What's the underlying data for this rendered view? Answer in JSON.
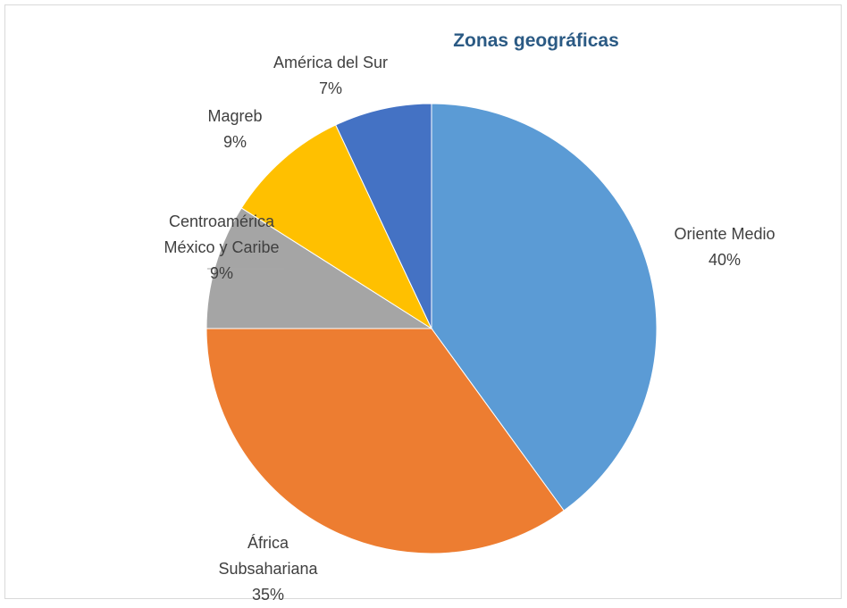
{
  "chart_data": {
    "type": "pie",
    "title": "Zonas geográficas",
    "categories": [
      "Oriente Medio",
      "África Subsahariana",
      "Centroamérica México y Caribe",
      "Magreb",
      "América del Sur"
    ],
    "values": [
      40,
      35,
      9,
      9,
      7
    ],
    "value_labels": [
      "40%",
      "35%",
      "9%",
      "9%",
      "7%"
    ],
    "colors": [
      "#5b9bd5",
      "#ed7d31",
      "#a5a5a5",
      "#ffc000",
      "#4472c4"
    ]
  }
}
